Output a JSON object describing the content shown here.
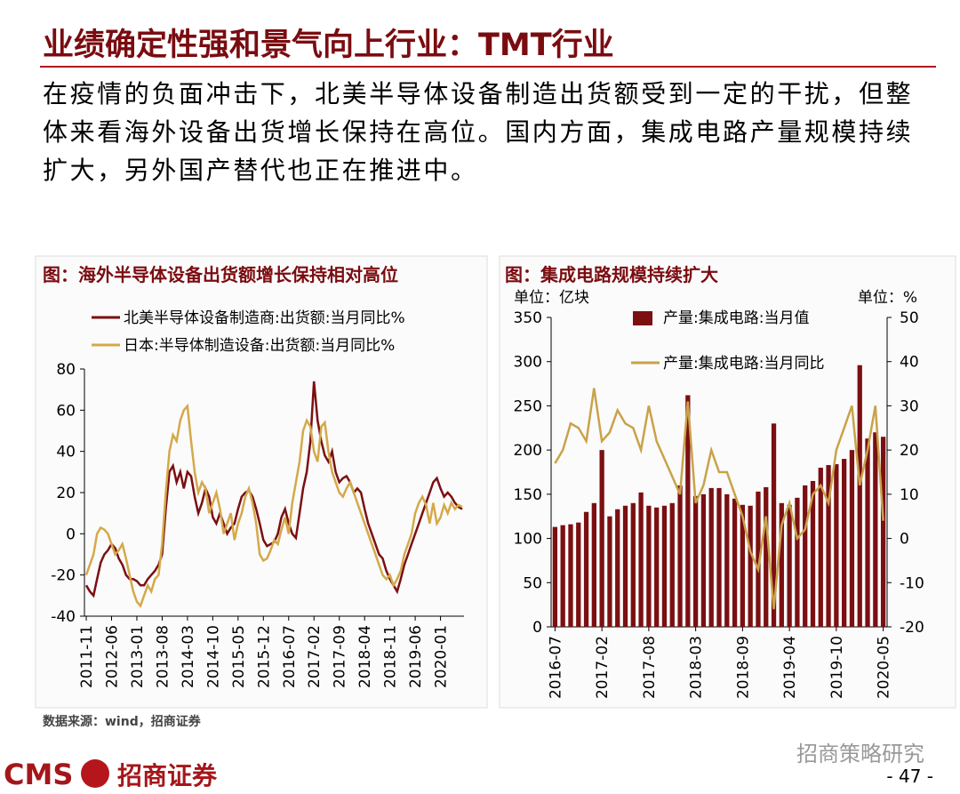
{
  "header": {
    "title": "业绩确定性强和景气向上行业：TMT行业",
    "body": "在疫情的负面冲击下，北美半导体设备制造出货额受到一定的干扰，但整体来看海外设备出货增长保持在高位。国内方面，集成电路产量规模持续扩大，另外国产替代也正在推进中。"
  },
  "chart_data": [
    {
      "type": "line",
      "title": "图：海外半导体设备出货额增长保持相对高位",
      "categories": [
        "2011-11",
        null,
        null,
        null,
        null,
        null,
        null,
        "2012-06",
        null,
        null,
        null,
        null,
        null,
        null,
        "2013-01",
        null,
        null,
        null,
        null,
        null,
        null,
        "2013-08",
        null,
        null,
        null,
        null,
        null,
        null,
        "2014-03",
        null,
        null,
        null,
        null,
        null,
        null,
        "2014-10",
        null,
        null,
        null,
        null,
        null,
        null,
        "2015-05",
        null,
        null,
        null,
        null,
        null,
        null,
        "2015-12",
        null,
        null,
        null,
        null,
        null,
        null,
        "2016-07",
        null,
        null,
        null,
        null,
        null,
        null,
        "2017-02",
        null,
        null,
        null,
        null,
        null,
        null,
        "2017-09",
        null,
        null,
        null,
        null,
        null,
        null,
        "2018-04",
        null,
        null,
        null,
        null,
        null,
        null,
        "2018-11",
        null,
        null,
        null,
        null,
        null,
        null,
        "2019-06",
        null,
        null,
        null,
        null,
        null,
        null,
        "2020-01",
        null,
        null,
        null,
        null,
        null,
        null
      ],
      "series": [
        {
          "name": "北美半导体设备制造商:出货额:当月同比%",
          "color": "#7b0f12",
          "values": [
            -25,
            -28,
            -30,
            -22,
            -14,
            -10,
            -8,
            -5,
            -7,
            -12,
            -15,
            -20,
            -22,
            -22,
            -23,
            -25,
            -25,
            -22,
            -20,
            -18,
            -15,
            -10,
            12,
            30,
            33,
            25,
            30,
            22,
            30,
            28,
            18,
            10,
            15,
            22,
            18,
            8,
            5,
            10,
            5,
            0,
            3,
            5,
            12,
            18,
            20,
            21,
            18,
            12,
            5,
            -3,
            -6,
            -5,
            -4,
            0,
            8,
            12,
            5,
            0,
            -2,
            10,
            22,
            30,
            45,
            74,
            55,
            45,
            38,
            35,
            40,
            30,
            25,
            27,
            28,
            25,
            20,
            22,
            20,
            12,
            5,
            0,
            -5,
            -10,
            -12,
            -18,
            -22,
            -25,
            -28,
            -22,
            -15,
            -10,
            -5,
            0,
            5,
            10,
            15,
            20,
            25,
            27,
            22,
            18,
            20,
            18,
            15,
            13,
            12
          ]
        },
        {
          "name": "日本:半导体制造设备:出货额:当月同比%",
          "color": "#d4a94a",
          "values": [
            -20,
            -15,
            -10,
            0,
            3,
            2,
            0,
            -5,
            -10,
            -8,
            -5,
            -12,
            -20,
            -28,
            -33,
            -35,
            -30,
            -25,
            -28,
            -22,
            -20,
            -5,
            20,
            40,
            48,
            45,
            55,
            60,
            62,
            45,
            30,
            20,
            25,
            22,
            10,
            15,
            20,
            12,
            0,
            5,
            10,
            -3,
            5,
            10,
            18,
            22,
            15,
            5,
            -10,
            -13,
            -12,
            -8,
            -3,
            -5,
            2,
            8,
            0,
            15,
            25,
            35,
            50,
            55,
            52,
            40,
            35,
            52,
            54,
            40,
            30,
            25,
            20,
            18,
            22,
            25,
            20,
            15,
            10,
            5,
            0,
            -5,
            -10,
            -15,
            -20,
            -22,
            -20,
            -25,
            -22,
            -18,
            -10,
            -5,
            0,
            10,
            15,
            18,
            14,
            5,
            15,
            5,
            8,
            14,
            10,
            15,
            12,
            14,
            13
          ]
        }
      ],
      "ylim": [
        -40,
        80
      ],
      "yticks": [
        -40,
        -20,
        0,
        20,
        40,
        60,
        80
      ],
      "legend": "top-left"
    },
    {
      "type": "combo",
      "title": "图：集成电路规模持续扩大",
      "ylabel": "单位：亿块",
      "y2label": "单位：%",
      "categories": [
        "2016-07",
        null,
        null,
        null,
        null,
        null,
        "2017-02",
        null,
        null,
        null,
        null,
        null,
        "2017-08",
        null,
        null,
        null,
        null,
        null,
        "2018-03",
        null,
        null,
        null,
        null,
        null,
        "2018-09",
        null,
        null,
        null,
        null,
        null,
        "2019-04",
        null,
        null,
        null,
        null,
        null,
        "2019-10",
        null,
        null,
        null,
        null,
        null,
        "2020-05"
      ],
      "series": [
        {
          "name": "产量:集成电路:当月值",
          "type": "bar",
          "color": "#7b0f12",
          "values": [
            113,
            115,
            116,
            118,
            130,
            140,
            200,
            125,
            133,
            137,
            140,
            152,
            137,
            135,
            137,
            140,
            160,
            262,
            148,
            150,
            157,
            157,
            150,
            145,
            138,
            137,
            153,
            158,
            230,
            140,
            138,
            146,
            160,
            165,
            180,
            183,
            184,
            190,
            200,
            296,
            213,
            220,
            215
          ]
        },
        {
          "name": "产量:集成电路:当月同比",
          "type": "line",
          "axis": "y2",
          "color": "#c9a24a",
          "values": [
            17,
            20,
            26,
            25,
            22,
            34,
            22,
            24,
            29,
            26,
            25,
            20,
            30,
            22,
            18,
            14,
            10,
            31,
            8,
            12,
            20,
            15,
            15,
            10,
            5,
            -3,
            -7,
            5,
            -16,
            3,
            8,
            0,
            2,
            10,
            12,
            8,
            20,
            25,
            30,
            12,
            20,
            30,
            4
          ]
        }
      ],
      "ylim": [
        0,
        350
      ],
      "yticks": [
        0,
        50,
        100,
        150,
        200,
        250,
        300,
        350
      ],
      "y2lim": [
        -20,
        50
      ],
      "y2ticks": [
        -20,
        -10,
        0,
        10,
        20,
        30,
        40,
        50
      ],
      "legend": "top-left"
    }
  ],
  "source": "数据来源：wind，招商证券",
  "watermark": "招商策略研究",
  "footer": {
    "logo": "CMS",
    "company": "招商证券",
    "page": "- 47 -"
  }
}
